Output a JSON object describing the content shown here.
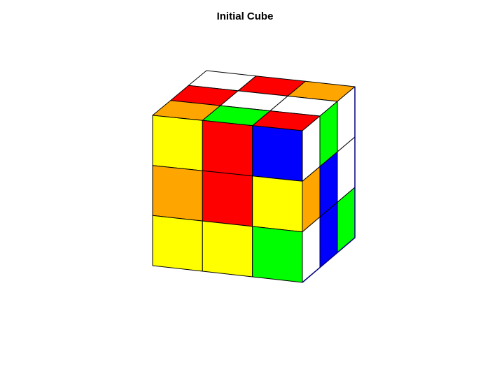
{
  "title": "Initial Cube",
  "colors": {
    "W": "#ffffff",
    "R": "#ff0000",
    "O": "#ffa500",
    "Y": "#ffff00",
    "G": "#00ff00",
    "B": "#0000ff"
  },
  "faces": {
    "top": [
      [
        "W",
        "R",
        "O"
      ],
      [
        "R",
        "W",
        "W"
      ],
      [
        "O",
        "G",
        "R"
      ]
    ],
    "front": [
      [
        "Y",
        "R",
        "B"
      ],
      [
        "O",
        "R",
        "Y"
      ],
      [
        "Y",
        "Y",
        "G"
      ]
    ],
    "right": [
      [
        "W",
        "G",
        "W"
      ],
      [
        "O",
        "B",
        "W"
      ],
      [
        "W",
        "B",
        "G"
      ]
    ]
  }
}
